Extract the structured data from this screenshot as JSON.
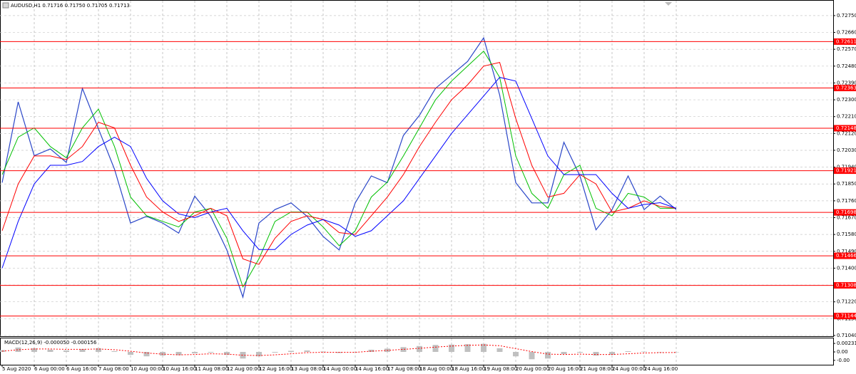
{
  "chart_data": [
    {
      "type": "line",
      "title": "AUDUSD,H1  0.71716 0.71750 0.71705 0.71713",
      "categories": [
        "5 Aug 2020",
        null,
        "6 Aug 00:00",
        null,
        "6 Aug 16:00",
        null,
        "7 Aug 08:00",
        null,
        "10 Aug 00:00",
        null,
        "10 Aug 16:00",
        null,
        "11 Aug 08:00",
        null,
        "12 Aug 00:00",
        null,
        "12 Aug 16:00",
        null,
        "13 Aug 08:00",
        null,
        "14 Aug 00:00",
        null,
        "14 Aug 16:00",
        null,
        "17 Aug 08:00",
        null,
        "18 Aug 00:00",
        null,
        "18 Aug 16:00",
        null,
        "19 Aug 08:00",
        null,
        "20 Aug 00:00",
        null,
        "20 Aug 16:00",
        null,
        "21 Aug 08:00",
        null,
        "24 Aug 00:00",
        null,
        "24 Aug 16:00",
        null,
        null
      ],
      "series": [
        {
          "color": "#2a46c8",
          "values": [
            0.71857,
            0.72289,
            0.72001,
            0.72037,
            0.71965,
            0.72361,
            0.72145,
            0.71929,
            0.71641,
            0.71677,
            0.71641,
            0.71587,
            0.71785,
            0.71677,
            0.71497,
            0.71245,
            0.71641,
            0.71713,
            0.71749,
            0.71677,
            0.71569,
            0.71497,
            0.71749,
            0.71893,
            0.71857,
            0.72109,
            0.72217,
            0.72361,
            0.72433,
            0.72505,
            0.72631,
            0.72325,
            0.71857,
            0.71749,
            0.71749,
            0.72073,
            0.71893,
            0.71605,
            0.71713,
            0.71893,
            0.71713,
            0.71785,
            0.71713
          ]
        },
        {
          "color": "#00c000",
          "values": [
            0.719,
            0.721,
            0.7215,
            0.7205,
            0.7199,
            0.7215,
            0.7225,
            0.7205,
            0.7178,
            0.7168,
            0.7165,
            0.7162,
            0.717,
            0.7172,
            0.7156,
            0.713,
            0.7145,
            0.7165,
            0.717,
            0.717,
            0.7162,
            0.7152,
            0.716,
            0.7178,
            0.7186,
            0.72,
            0.7215,
            0.723,
            0.724,
            0.7248,
            0.7256,
            0.7242,
            0.72,
            0.718,
            0.7172,
            0.719,
            0.7195,
            0.7172,
            0.7168,
            0.718,
            0.7178,
            0.7172,
            0.7172
          ]
        },
        {
          "color": "#ff0000",
          "values": [
            0.716,
            0.7185,
            0.72,
            0.72,
            0.7198,
            0.7205,
            0.7218,
            0.7215,
            0.7195,
            0.7178,
            0.717,
            0.7165,
            0.7168,
            0.7172,
            0.7168,
            0.7145,
            0.7142,
            0.7156,
            0.7165,
            0.7168,
            0.7166,
            0.7159,
            0.7158,
            0.7168,
            0.7178,
            0.719,
            0.7205,
            0.7218,
            0.723,
            0.7238,
            0.7248,
            0.725,
            0.722,
            0.7195,
            0.7178,
            0.718,
            0.719,
            0.7185,
            0.717,
            0.7172,
            0.7176,
            0.7173,
            0.7172
          ]
        },
        {
          "color": "#0000ff",
          "values": [
            0.714,
            0.7165,
            0.7185,
            0.7195,
            0.7195,
            0.7197,
            0.7205,
            0.721,
            0.7205,
            0.7188,
            0.7176,
            0.7169,
            0.7167,
            0.717,
            0.7172,
            0.716,
            0.715,
            0.715,
            0.7158,
            0.7163,
            0.7166,
            0.7163,
            0.7157,
            0.716,
            0.7168,
            0.7176,
            0.7188,
            0.72,
            0.7212,
            0.7222,
            0.7232,
            0.7242,
            0.724,
            0.722,
            0.72,
            0.719,
            0.719,
            0.719,
            0.718,
            0.7172,
            0.7174,
            0.7175,
            0.7172
          ]
        }
      ],
      "levels": [
        0.72611,
        0.72363,
        0.72148,
        0.71921,
        0.71698,
        0.71466,
        0.71308,
        0.71144
      ],
      "level_color": "#ff0000",
      "ylim": [
        0.71036,
        0.72822
      ],
      "yticks": [
        {
          "value": 0.7104,
          "label": "0.71040"
        },
        {
          "value": 0.7113,
          "label": "0.71130"
        },
        {
          "value": 0.7122,
          "label": "0.71220"
        },
        {
          "value": 0.7131,
          "label": "0.71310"
        },
        {
          "value": 0.714,
          "label": "0.71400"
        },
        {
          "value": 0.7149,
          "label": "0.71490"
        },
        {
          "value": 0.7158,
          "label": "0.71580"
        },
        {
          "value": 0.7167,
          "label": "0.71670"
        },
        {
          "value": 0.7176,
          "label": "0.71760"
        },
        {
          "value": 0.7185,
          "label": "0.71850"
        },
        {
          "value": 0.7194,
          "label": "0.71940"
        },
        {
          "value": 0.7203,
          "label": "0.72030"
        },
        {
          "value": 0.7212,
          "label": "0.72120"
        },
        {
          "value": 0.7221,
          "label": "0.72210"
        },
        {
          "value": 0.723,
          "label": "0.72300"
        },
        {
          "value": 0.7239,
          "label": "0.72390"
        },
        {
          "value": 0.7248,
          "label": "0.72480"
        },
        {
          "value": 0.7257,
          "label": "0.72570"
        },
        {
          "value": 0.7266,
          "label": "0.72660"
        },
        {
          "value": 0.7275,
          "label": "0.72750"
        }
      ],
      "grid": true
    },
    {
      "type": "bar",
      "title": "MACD(12,26,9) -0.000050 -0.000156",
      "series": [
        {
          "type": "bar",
          "color": "#c0c0c0",
          "values": [
            0.0005,
            0.0012,
            0.001,
            0.0006,
            0.0004,
            0.0008,
            0.001,
            0.0002,
            -0.0008,
            -0.0012,
            -0.001,
            -0.0009,
            -0.0004,
            -0.0002,
            -0.0008,
            -0.0018,
            -0.0012,
            -0.0002,
            0.0003,
            0.0004,
            0.0001,
            -0.0003,
            0,
            0.0006,
            0.0009,
            0.0013,
            0.0016,
            0.0019,
            0.002,
            0.0021,
            0.0022,
            0.001,
            -0.0012,
            -0.002,
            -0.0018,
            -0.0006,
            -0.0002,
            -0.001,
            -0.0008,
            0.0002,
            0.0001,
            0,
            -5e-05
          ]
        },
        {
          "type": "line",
          "color": "#ff0000",
          "values": [
            0.0002,
            0.0006,
            0.0008,
            0.0008,
            0.0007,
            0.0007,
            0.0008,
            0.0006,
            0.0002,
            -0.0003,
            -0.0006,
            -0.0008,
            -0.0007,
            -0.0005,
            -0.0006,
            -0.0009,
            -0.001,
            -0.0008,
            -0.0005,
            -0.0002,
            -0.0001,
            -0.0001,
            -0.0001,
            0.0002,
            0.0004,
            0.0007,
            0.001,
            0.0013,
            0.0016,
            0.0018,
            0.0019,
            0.0017,
            0.0009,
            0.0001,
            -0.0006,
            -0.0007,
            -0.0006,
            -0.0007,
            -0.0007,
            -0.0005,
            -0.0003,
            -0.0002,
            -0.000156
          ]
        }
      ],
      "ylim": [
        -0.0035,
        0.0035
      ],
      "yticks": [
        0.002315,
        {
          "value": 0,
          "label": "0.00"
        },
        {
          "value": -0.0023,
          "label": "-0.00"
        }
      ]
    }
  ]
}
